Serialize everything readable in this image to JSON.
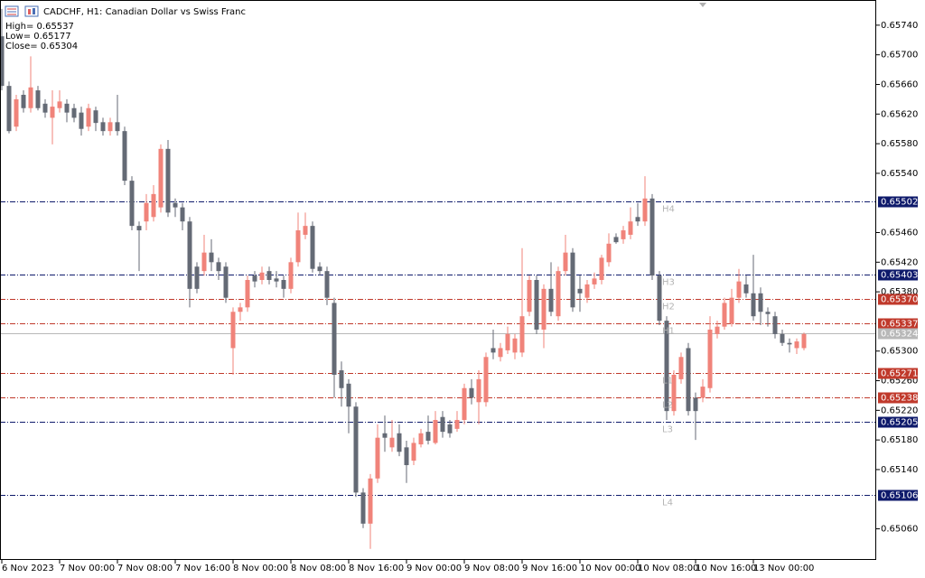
{
  "chart_data": {
    "type": "candlestick",
    "title": "CADCHF, H1:  Canadian Dollar vs Swiss Franc",
    "info": [
      "High= 0.65537",
      "Low= 0.65177",
      "Close= 0.65304"
    ],
    "up_color": "#f0837a",
    "down_color": "#646a75",
    "categories": [
      "6 Nov 2023",
      null,
      null,
      null,
      null,
      null,
      null,
      null,
      "7 Nov 00:00",
      null,
      null,
      null,
      null,
      null,
      null,
      null,
      "7 Nov 08:00",
      null,
      null,
      null,
      null,
      null,
      null,
      null,
      "7 Nov 16:00",
      null,
      null,
      null,
      null,
      null,
      null,
      null,
      "8 Nov 00:00",
      null,
      null,
      null,
      null,
      null,
      null,
      null,
      "8 Nov 08:00",
      null,
      null,
      null,
      null,
      null,
      null,
      null,
      "8 Nov 16:00",
      null,
      null,
      null,
      null,
      null,
      null,
      null,
      "9 Nov 00:00",
      null,
      null,
      null,
      null,
      null,
      null,
      null,
      "9 Nov 08:00",
      null,
      null,
      null,
      null,
      null,
      null,
      null,
      "9 Nov 16:00",
      null,
      null,
      null,
      null,
      null,
      null,
      null,
      "10 Nov 00:00",
      null,
      null,
      null,
      null,
      null,
      null,
      null,
      "10 Nov 08:00",
      null,
      null,
      null,
      null,
      null,
      null,
      null,
      "10 Nov 16:00",
      null,
      null,
      null,
      null,
      null,
      null,
      null,
      "13 Nov 00:00",
      null,
      null,
      null,
      null,
      null,
      null,
      null
    ],
    "open": [
      0.65725,
      0.65658,
      0.65603,
      0.65646,
      0.65628,
      0.65652,
      0.65634,
      0.65615,
      0.65628,
      0.65634,
      0.65628,
      0.65622,
      0.65603,
      0.65625,
      0.65609,
      0.65597,
      0.65609,
      0.65597,
      0.6553,
      0.65469,
      0.65475,
      0.65481,
      0.65494,
      0.65573,
      0.655,
      0.65494,
      0.65475,
      0.65414,
      0.65408,
      0.65433,
      0.6542,
      0.65414,
      0.65304,
      0.65353,
      0.65359,
      0.65402,
      0.65396,
      0.65408,
      0.65398,
      0.65396,
      0.65384,
      0.6542,
      0.65457,
      0.65469,
      0.65414,
      0.65408,
      0.65365,
      0.65274,
      0.65256,
      0.65225,
      0.65109,
      0.65067,
      0.65128,
      0.65189,
      0.6517,
      0.65189,
      0.6517,
      0.65152,
      0.65174,
      0.65191,
      0.65176,
      0.65211,
      0.65201,
      0.65195,
      0.65207,
      0.6525,
      0.65231,
      0.65231,
      0.65304,
      0.65292,
      0.65301,
      0.65298,
      0.65298,
      0.65353,
      0.65396,
      0.65329,
      0.65384,
      0.65347,
      0.65408,
      0.65433,
      0.65384,
      0.65372,
      0.6539,
      0.65396,
      0.6542,
      0.65454,
      0.65451,
      0.65457,
      0.65481,
      0.65475,
      0.65506,
      0.65402,
      0.65341,
      0.65219,
      0.65262,
      0.65304,
      0.65237,
      0.65237,
      0.6525,
      0.65323,
      0.65333,
      0.65337,
      0.65372,
      0.6539,
      0.65378,
      0.65378,
      0.65353,
      0.65347,
      0.65323,
      0.65311,
      0.65304,
      0.65304
    ],
    "high": [
      0.65762,
      0.65664,
      0.65646,
      0.65652,
      0.65698,
      0.65658,
      0.6564,
      0.65652,
      0.65652,
      0.6564,
      0.65634,
      0.6563,
      0.65634,
      0.6563,
      0.65615,
      0.65615,
      0.65646,
      0.65603,
      0.65536,
      0.65475,
      0.65512,
      0.65524,
      0.65579,
      0.65585,
      0.65506,
      0.655,
      0.65481,
      0.6542,
      0.65457,
      0.65451,
      0.65426,
      0.6542,
      0.65359,
      0.65365,
      0.65402,
      0.65408,
      0.65414,
      0.65414,
      0.65408,
      0.65402,
      0.65426,
      0.65487,
      0.65487,
      0.65475,
      0.6542,
      0.65414,
      0.65372,
      0.65286,
      0.65262,
      0.65231,
      0.65115,
      0.65134,
      0.65201,
      0.65213,
      0.65207,
      0.65201,
      0.65179,
      0.65183,
      0.65195,
      0.65213,
      0.65219,
      0.65219,
      0.65207,
      0.65219,
      0.65256,
      0.65262,
      0.65274,
      0.65298,
      0.65329,
      0.65311,
      0.65333,
      0.65323,
      0.65439,
      0.65402,
      0.65402,
      0.6539,
      0.6542,
      0.65414,
      0.65457,
      0.65439,
      0.65402,
      0.65396,
      0.65406,
      0.6543,
      0.65459,
      0.65459,
      0.65469,
      0.65494,
      0.655,
      0.65536,
      0.65512,
      0.65408,
      0.65347,
      0.65274,
      0.65298,
      0.65311,
      0.65244,
      0.65262,
      0.65347,
      0.65341,
      0.65372,
      0.65384,
      0.65411,
      0.65402,
      0.6543,
      0.65386,
      0.65359,
      0.65353,
      0.65329,
      0.65317,
      0.65317,
      0.65325
    ],
    "low": [
      0.65652,
      0.65594,
      0.65597,
      0.65622,
      0.65622,
      0.65625,
      0.65615,
      0.65579,
      0.65622,
      0.65609,
      0.65609,
      0.65591,
      0.65597,
      0.65597,
      0.65591,
      0.65591,
      0.65591,
      0.65524,
      0.65463,
      0.65408,
      0.65463,
      0.65475,
      0.65487,
      0.65481,
      0.65481,
      0.65463,
      0.65359,
      0.65378,
      0.65402,
      0.65408,
      0.65396,
      0.65365,
      0.65268,
      0.65341,
      0.65353,
      0.65386,
      0.6539,
      0.6539,
      0.65386,
      0.65372,
      0.65378,
      0.65414,
      0.65451,
      0.65406,
      0.65402,
      0.65362,
      0.65237,
      0.65225,
      0.65189,
      0.65103,
      0.65061,
      0.65033,
      0.65122,
      0.65164,
      0.65164,
      0.65158,
      0.65122,
      0.65146,
      0.6517,
      0.65174,
      0.65174,
      0.65183,
      0.65183,
      0.65191,
      0.65201,
      0.65228,
      0.65201,
      0.65225,
      0.65289,
      0.65286,
      0.65296,
      0.65289,
      0.65292,
      0.65347,
      0.65323,
      0.65304,
      0.65347,
      0.65341,
      0.65402,
      0.65353,
      0.65353,
      0.65365,
      0.65384,
      0.6539,
      0.65414,
      0.65445,
      0.65445,
      0.65451,
      0.65469,
      0.65469,
      0.65396,
      0.65335,
      0.65207,
      0.65213,
      0.65256,
      0.65213,
      0.6518,
      0.65231,
      0.65244,
      0.65317,
      0.65329,
      0.65333,
      0.65365,
      0.65372,
      0.65341,
      0.65335,
      0.65333,
      0.65317,
      0.65307,
      0.65298,
      0.65296,
      0.65301
    ],
    "close": [
      0.65658,
      0.65597,
      0.6564,
      0.65628,
      0.65656,
      0.65628,
      0.65622,
      0.6563,
      0.65637,
      0.65622,
      0.65615,
      0.656,
      0.65628,
      0.65608,
      0.65597,
      0.65609,
      0.65597,
      0.6553,
      0.65469,
      0.65463,
      0.655,
      0.65512,
      0.65573,
      0.65487,
      0.65494,
      0.65475,
      0.65384,
      0.65384,
      0.65433,
      0.6542,
      0.65408,
      0.65372,
      0.65353,
      0.65359,
      0.65396,
      0.65394,
      0.65406,
      0.65396,
      0.65394,
      0.65384,
      0.6542,
      0.65463,
      0.65469,
      0.65411,
      0.65408,
      0.65372,
      0.65268,
      0.6525,
      0.65225,
      0.65109,
      0.65067,
      0.65128,
      0.65183,
      0.65183,
      0.65183,
      0.65164,
      0.65146,
      0.65176,
      0.65189,
      0.65179,
      0.65207,
      0.65191,
      0.65189,
      0.65207,
      0.6525,
      0.65237,
      0.65262,
      0.65292,
      0.65298,
      0.65304,
      0.65323,
      0.65317,
      0.65347,
      0.65396,
      0.65329,
      0.65384,
      0.65353,
      0.65408,
      0.65433,
      0.65359,
      0.65378,
      0.6539,
      0.65398,
      0.65426,
      0.65445,
      0.65447,
      0.65463,
      0.65475,
      0.65475,
      0.65506,
      0.65402,
      0.65341,
      0.65219,
      0.65268,
      0.65292,
      0.65219,
      0.65219,
      0.65252,
      0.65329,
      0.65333,
      0.65365,
      0.65372,
      0.65394,
      0.65378,
      0.65347,
      0.65353,
      0.6535,
      0.65323,
      0.65311,
      0.65309,
      0.65313,
      0.65323
    ],
    "ylim": [
      0.65018,
      0.65774
    ],
    "yticks": [
      {
        "value": 0.6574,
        "label": "0.65740"
      },
      {
        "value": 0.657,
        "label": "0.65700"
      },
      {
        "value": 0.6566,
        "label": "0.65660"
      },
      {
        "value": 0.6562,
        "label": "0.65620"
      },
      {
        "value": 0.6558,
        "label": "0.65580"
      },
      {
        "value": 0.6554,
        "label": "0.65540"
      },
      {
        "value": 0.6546,
        "label": "0.65460"
      },
      {
        "value": 0.6542,
        "label": "0.65420"
      },
      {
        "value": 0.6538,
        "label": "0.65380"
      },
      {
        "value": 0.653,
        "label": "0.65300"
      },
      {
        "value": 0.6526,
        "label": "0.65260"
      },
      {
        "value": 0.6522,
        "label": "0.65220"
      },
      {
        "value": 0.6518,
        "label": "0.65180"
      },
      {
        "value": 0.6514,
        "label": "0.65140"
      },
      {
        "value": 0.6506,
        "label": "0.65060"
      }
    ],
    "levels": [
      {
        "name": "H4",
        "value": 0.65502,
        "label": "0.65502",
        "color": "#0e1a6b"
      },
      {
        "name": "H3",
        "value": 0.65403,
        "label": "0.65403",
        "color": "#0e1a6b"
      },
      {
        "name": "H2",
        "value": 0.6537,
        "label": "0.65370",
        "color": "#c0392b"
      },
      {
        "name": "H1",
        "value": 0.65337,
        "label": "0.65337",
        "color": "#c0392b"
      },
      {
        "value": 0.65324,
        "label": "0.65324",
        "color": "#b8b8b8"
      },
      {
        "name": "L1",
        "value": 0.65271,
        "label": "0.65271",
        "color": "#c0392b"
      },
      {
        "name": "L2",
        "value": 0.65238,
        "label": "0.65238",
        "color": "#c0392b"
      },
      {
        "name": "L3",
        "value": 0.65205,
        "label": "0.65205",
        "color": "#0e1a6b"
      },
      {
        "name": "L4",
        "value": 0.65106,
        "label": "0.65106",
        "color": "#0e1a6b"
      }
    ]
  }
}
